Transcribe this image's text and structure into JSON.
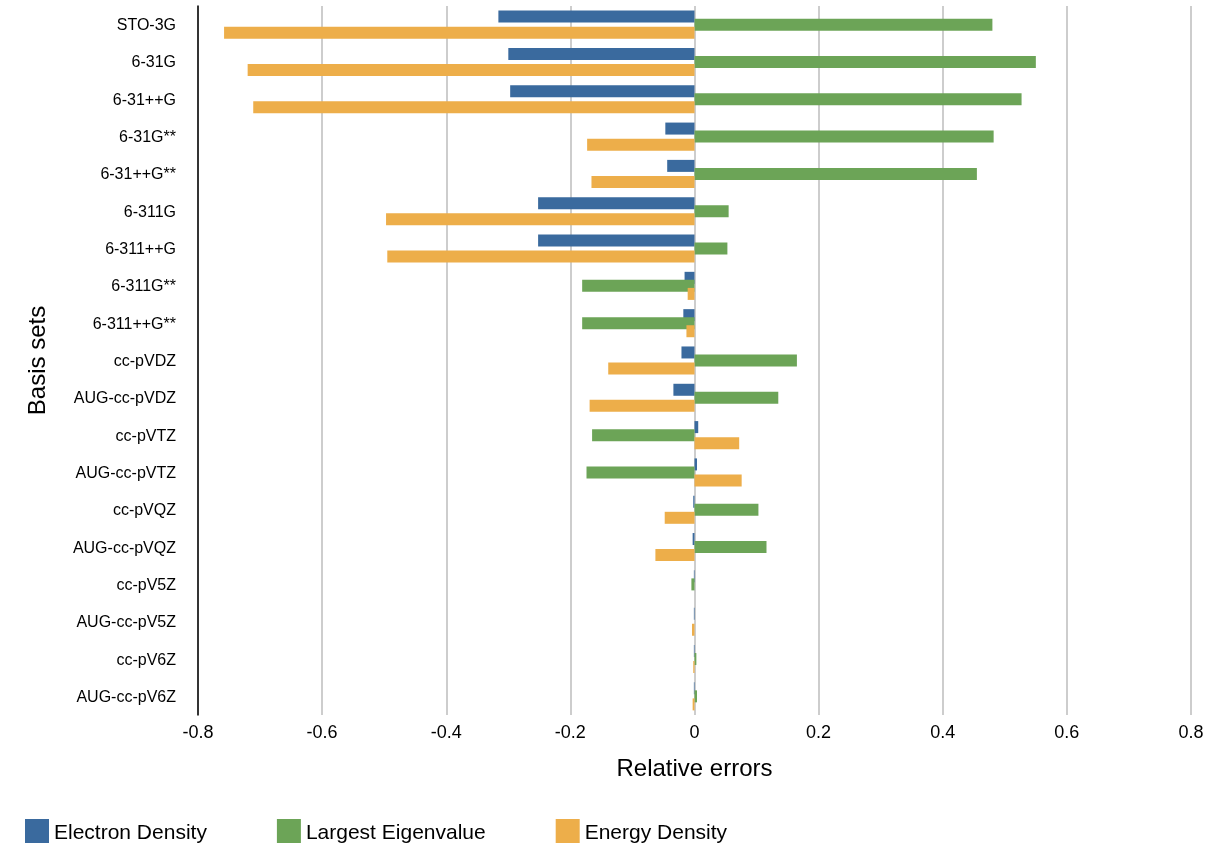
{
  "chart_data": {
    "type": "bar",
    "orientation": "horizontal",
    "xlabel": "Relative errors",
    "ylabel": "Basis sets",
    "categories": [
      "STO-3G",
      "6-31G",
      "6-31++G",
      "6-31G**",
      "6-31++G**",
      "6-311G",
      "6-311++G",
      "6-311G**",
      "6-311++G**",
      "cc-pVDZ",
      "AUG-cc-pVDZ",
      "cc-pVTZ",
      "AUG-cc-pVTZ",
      "cc-pVQZ",
      "AUG-cc-pVQZ",
      "cc-pV5Z",
      "AUG-cc-pV5Z",
      "cc-pV6Z",
      "AUG-cc-pV6Z"
    ],
    "series": [
      {
        "name": "Electron Density",
        "color": "#3a6a9e",
        "values": [
          -0.316,
          -0.3,
          -0.297,
          -0.047,
          -0.044,
          -0.252,
          -0.252,
          -0.016,
          -0.018,
          -0.021,
          -0.034,
          0.006,
          0.004,
          -0.002,
          -0.003,
          -0.001,
          -0.001,
          -0.001,
          -0.001
        ]
      },
      {
        "name": "Largest Eigenvalue",
        "color": "#6ca457",
        "values": [
          0.48,
          0.55,
          0.527,
          0.482,
          0.455,
          0.055,
          0.053,
          -0.181,
          -0.181,
          0.165,
          0.135,
          -0.165,
          -0.174,
          0.103,
          0.116,
          -0.005,
          null,
          0.003,
          0.004
        ]
      },
      {
        "name": "Energy Density",
        "color": "#edae4a",
        "values": [
          -0.758,
          -0.72,
          -0.711,
          -0.173,
          -0.166,
          -0.497,
          -0.495,
          -0.011,
          -0.013,
          -0.139,
          -0.169,
          0.072,
          0.076,
          -0.048,
          -0.063,
          null,
          -0.004,
          -0.002,
          -0.003
        ]
      }
    ],
    "xlim": [
      -0.8,
      0.8
    ],
    "xticks": [
      -0.8,
      -0.6,
      -0.4,
      -0.2,
      0,
      0.2,
      0.4,
      0.6,
      0.8
    ],
    "grid": "x",
    "legend": "bottom"
  }
}
